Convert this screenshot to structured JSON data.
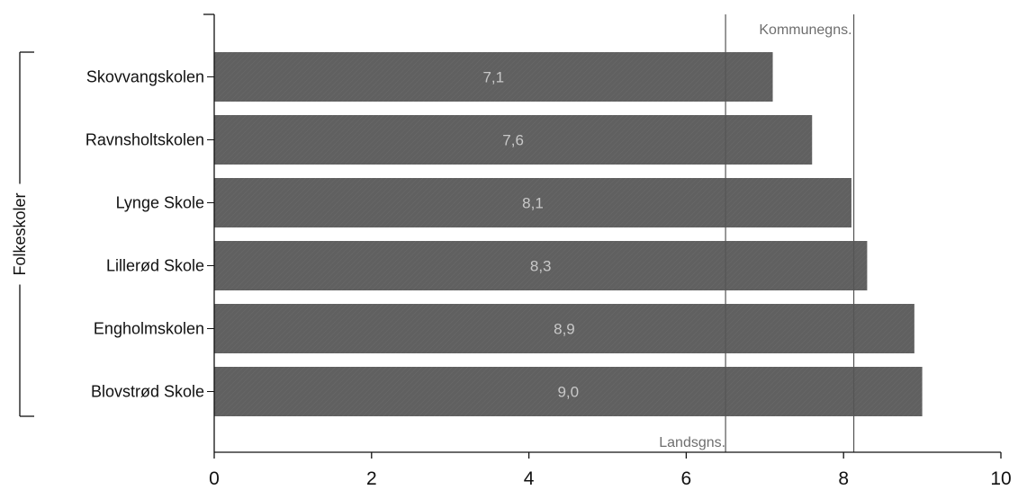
{
  "chart_data": {
    "type": "bar",
    "orientation": "horizontal",
    "group_label": "Folkeskoler",
    "categories": [
      "Skovvangskolen",
      "Ravnsholtskolen",
      "Lynge Skole",
      "Lillerød Skole",
      "Engholmskolen",
      "Blovstrød Skole"
    ],
    "values": [
      7.1,
      7.6,
      8.1,
      8.3,
      8.9,
      9.0
    ],
    "value_labels": [
      "7,1",
      "7,6",
      "8,1",
      "8,3",
      "8,9",
      "9,0"
    ],
    "xlim": [
      0,
      10
    ],
    "x_ticks": [
      0,
      2,
      4,
      6,
      8,
      10
    ],
    "x_tick_labels": [
      "0",
      "2",
      "4",
      "6",
      "8",
      "10"
    ],
    "reference_lines": [
      {
        "label": "Landsgns.",
        "value": 6.5
      },
      {
        "label": "Kommunegns.",
        "value": 8.13
      }
    ],
    "grid": false,
    "legend": "none",
    "colors": {
      "bar": "#606060",
      "reference_line": "#555555",
      "axis": "#111111"
    }
  }
}
